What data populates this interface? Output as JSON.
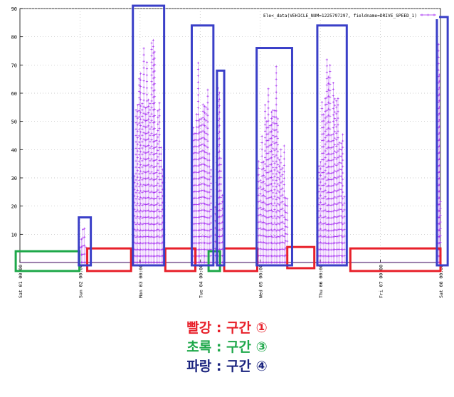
{
  "chart_data": {
    "type": "scatter",
    "title": "",
    "xlabel": "",
    "ylabel": "",
    "legend": {
      "entry": "Ele<_data(VEHICLE_NUM=1225797297, fieldname=DRIVE_SPEED_1)",
      "placement": "top-right"
    },
    "ylim": [
      0,
      90
    ],
    "yticks": [
      "10",
      "20",
      "30",
      "40",
      "50",
      "60",
      "70",
      "80",
      "90"
    ],
    "xlim": [
      0,
      7
    ],
    "xticks": [
      {
        "x": 0,
        "label": "Sat 01 00:00"
      },
      {
        "x": 1,
        "label": "Sun 02 00:00"
      },
      {
        "x": 2,
        "label": "Mon 03 00:00"
      },
      {
        "x": 3,
        "label": "Tue 04 00:00"
      },
      {
        "x": 4,
        "label": "Wed 05 00:00"
      },
      {
        "x": 5,
        "label": "Thu 06 00:00"
      },
      {
        "x": 6,
        "label": "Fri 07 00:00"
      },
      {
        "x": 7,
        "label": "Sat 08 00:00"
      }
    ],
    "grid": true,
    "series_color": "#a020f0",
    "activity_bursts": [
      {
        "start": 1.0,
        "end": 1.1,
        "peak": 14
      },
      {
        "start": 1.88,
        "end": 2.4,
        "peak": 88
      },
      {
        "start": 2.86,
        "end": 3.18,
        "peak": 82
      },
      {
        "start": 3.25,
        "end": 3.37,
        "peak": 67
      },
      {
        "start": 3.95,
        "end": 4.45,
        "peak": 74
      },
      {
        "start": 4.95,
        "end": 5.4,
        "peak": 81
      },
      {
        "start": 6.95,
        "end": 7.0,
        "peak": 86
      }
    ],
    "regions": [
      {
        "type": "red",
        "x0": 1.12,
        "x1": 1.85,
        "y0": -3,
        "y1": 5
      },
      {
        "type": "red",
        "x0": 2.42,
        "x1": 2.92,
        "y0": -3,
        "y1": 5
      },
      {
        "type": "red",
        "x0": 3.4,
        "x1": 3.95,
        "y0": -3,
        "y1": 5
      },
      {
        "type": "red",
        "x0": 4.45,
        "x1": 4.9,
        "y0": -2,
        "y1": 5.5
      },
      {
        "type": "red",
        "x0": 5.5,
        "x1": 7.0,
        "y0": -3,
        "y1": 5
      },
      {
        "type": "green",
        "x0": -0.07,
        "x1": 0.99,
        "y0": -3,
        "y1": 4
      },
      {
        "type": "green",
        "x0": 3.14,
        "x1": 3.33,
        "y0": -3,
        "y1": 4
      },
      {
        "type": "blue",
        "x0": 0.98,
        "x1": 1.18,
        "y0": -1,
        "y1": 16
      },
      {
        "type": "blue",
        "x0": 1.88,
        "x1": 2.4,
        "y0": -1,
        "y1": 91
      },
      {
        "type": "blue",
        "x0": 2.86,
        "x1": 3.22,
        "y0": -1,
        "y1": 84
      },
      {
        "type": "blue",
        "x0": 3.28,
        "x1": 3.4,
        "y0": -1,
        "y1": 68
      },
      {
        "type": "blue",
        "x0": 3.94,
        "x1": 4.53,
        "y0": -1,
        "y1": 76
      },
      {
        "type": "blue",
        "x0": 4.95,
        "x1": 5.44,
        "y0": -1,
        "y1": 84
      },
      {
        "type": "blue",
        "x0": 6.94,
        "x1": 7.12,
        "y0": -1,
        "y1": 87
      }
    ]
  },
  "legend_text": {
    "red": "빨강 : 구간 ①",
    "green": "초록 : 구간 ③",
    "blue": "파랑 : 구간 ④"
  },
  "colors": {
    "red": "#e8202a",
    "green": "#1ea84a",
    "blue_box": "#3a3fc8",
    "blue_text": "#1a237e"
  }
}
